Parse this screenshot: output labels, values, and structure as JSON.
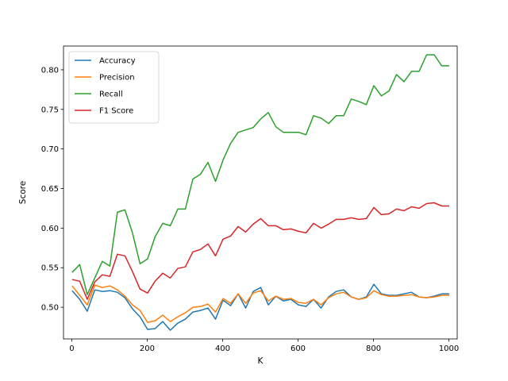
{
  "chart_data": {
    "type": "line",
    "title": "",
    "xlabel": "K",
    "ylabel": "Score",
    "xlim": [
      -22,
      1022
    ],
    "ylim": [
      0.46,
      0.83
    ],
    "xticks": [
      0,
      200,
      400,
      600,
      800,
      1000
    ],
    "yticks": [
      0.5,
      0.55,
      0.6,
      0.65,
      0.7,
      0.75,
      0.8
    ],
    "ytick_labels": [
      "0.50",
      "0.55",
      "0.60",
      "0.65",
      "0.70",
      "0.75",
      "0.80"
    ],
    "grid": false,
    "legend_position": "upper left",
    "x": [
      1,
      21,
      41,
      61,
      81,
      101,
      121,
      141,
      161,
      181,
      201,
      221,
      241,
      261,
      281,
      301,
      321,
      341,
      361,
      381,
      401,
      421,
      441,
      461,
      481,
      501,
      521,
      541,
      561,
      581,
      601,
      621,
      641,
      661,
      681,
      701,
      721,
      741,
      761,
      781,
      801,
      821,
      841,
      861,
      881,
      901,
      921,
      941,
      961,
      981,
      1001
    ],
    "series": [
      {
        "name": "Accuracy",
        "color": "#1f77b4",
        "values": [
          0.521,
          0.51,
          0.495,
          0.522,
          0.52,
          0.521,
          0.519,
          0.512,
          0.498,
          0.488,
          0.472,
          0.473,
          0.482,
          0.471,
          0.48,
          0.485,
          0.494,
          0.496,
          0.499,
          0.485,
          0.509,
          0.502,
          0.517,
          0.499,
          0.52,
          0.525,
          0.503,
          0.514,
          0.508,
          0.51,
          0.503,
          0.501,
          0.51,
          0.499,
          0.513,
          0.52,
          0.522,
          0.513,
          0.51,
          0.513,
          0.529,
          0.517,
          0.515,
          0.515,
          0.517,
          0.519,
          0.513,
          0.512,
          0.514,
          0.517,
          0.517
        ]
      },
      {
        "name": "Precision",
        "color": "#ff7f0e",
        "values": [
          0.527,
          0.515,
          0.503,
          0.528,
          0.525,
          0.527,
          0.522,
          0.514,
          0.503,
          0.496,
          0.481,
          0.483,
          0.49,
          0.482,
          0.488,
          0.493,
          0.5,
          0.501,
          0.504,
          0.494,
          0.511,
          0.505,
          0.517,
          0.505,
          0.518,
          0.521,
          0.508,
          0.514,
          0.51,
          0.511,
          0.506,
          0.505,
          0.51,
          0.503,
          0.512,
          0.517,
          0.519,
          0.513,
          0.51,
          0.512,
          0.521,
          0.516,
          0.514,
          0.514,
          0.515,
          0.516,
          0.513,
          0.512,
          0.513,
          0.515,
          0.515
        ]
      },
      {
        "name": "Recall",
        "color": "#2ca02c",
        "values": [
          0.544,
          0.554,
          0.516,
          0.537,
          0.558,
          0.552,
          0.62,
          0.623,
          0.594,
          0.555,
          0.561,
          0.589,
          0.606,
          0.603,
          0.624,
          0.624,
          0.662,
          0.668,
          0.683,
          0.659,
          0.686,
          0.707,
          0.721,
          0.724,
          0.727,
          0.738,
          0.746,
          0.728,
          0.721,
          0.721,
          0.721,
          0.718,
          0.742,
          0.739,
          0.732,
          0.742,
          0.742,
          0.763,
          0.76,
          0.756,
          0.78,
          0.767,
          0.773,
          0.794,
          0.785,
          0.798,
          0.798,
          0.819,
          0.819,
          0.805,
          0.805
        ]
      },
      {
        "name": "F1 Score",
        "color": "#d62728",
        "values": [
          0.535,
          0.533,
          0.51,
          0.532,
          0.541,
          0.539,
          0.567,
          0.565,
          0.545,
          0.523,
          0.518,
          0.533,
          0.543,
          0.537,
          0.549,
          0.551,
          0.57,
          0.573,
          0.58,
          0.565,
          0.586,
          0.59,
          0.602,
          0.595,
          0.605,
          0.612,
          0.603,
          0.603,
          0.598,
          0.599,
          0.596,
          0.594,
          0.606,
          0.6,
          0.605,
          0.611,
          0.611,
          0.613,
          0.611,
          0.612,
          0.626,
          0.617,
          0.618,
          0.624,
          0.622,
          0.627,
          0.625,
          0.631,
          0.632,
          0.628,
          0.628
        ]
      }
    ]
  }
}
